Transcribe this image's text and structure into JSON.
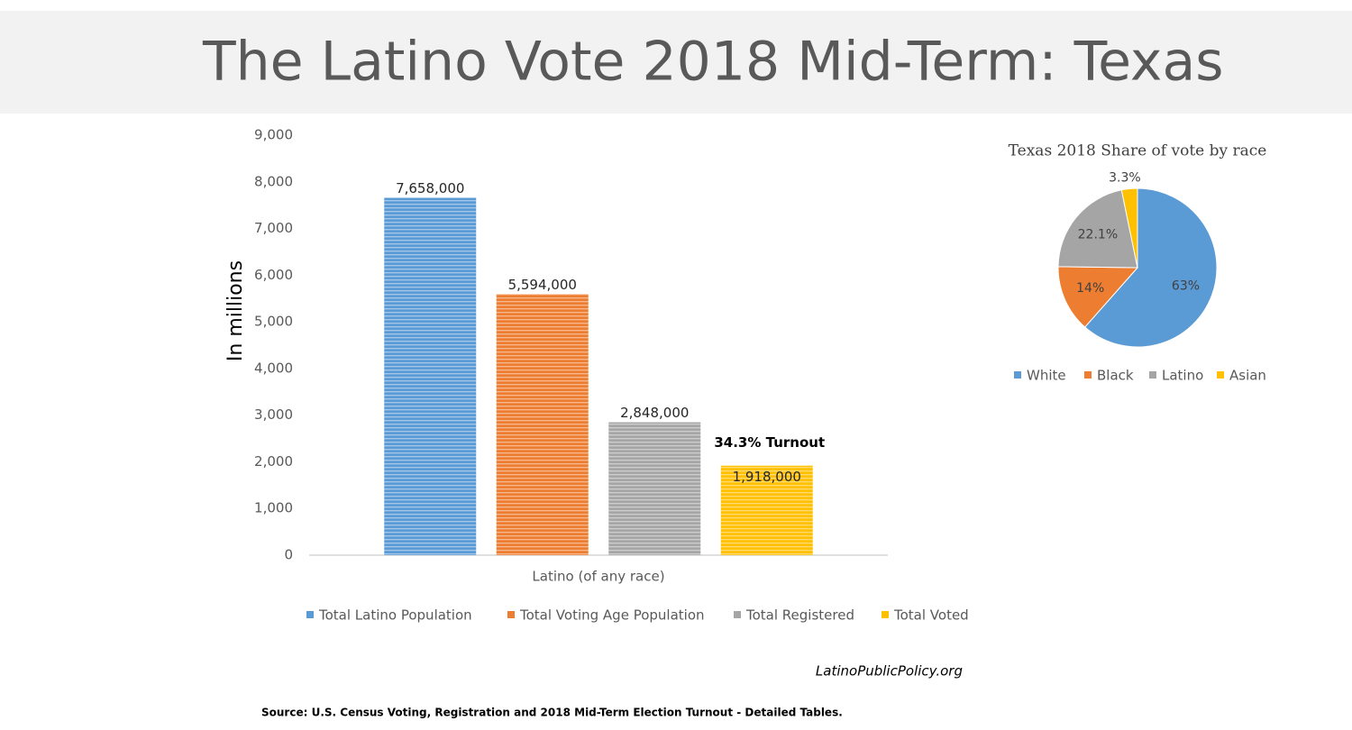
{
  "title": "The Latino Vote 2018 Mid-Term: Texas",
  "credit": "LatinoPublicPolicy.org",
  "source": "Source: U.S. Census Voting, Registration and 2018 Mid-Term Election Turnout - Detailed Tables.",
  "chart_data": [
    {
      "type": "bar",
      "ylabel": "In millions",
      "categories": [
        "Latino (of any race)"
      ],
      "series": [
        {
          "name": "Total Latino Population",
          "color": "#5b9bd5",
          "values": [
            7658
          ],
          "value_labels": [
            "7,658,000"
          ]
        },
        {
          "name": "Total Voting Age Population",
          "color": "#ed7d31",
          "values": [
            5594
          ],
          "value_labels": [
            "5,594,000"
          ]
        },
        {
          "name": "Total Registered",
          "color": "#a5a5a5",
          "values": [
            2848
          ],
          "value_labels": [
            "2,848,000"
          ]
        },
        {
          "name": "Total Voted",
          "color": "#ffc000",
          "values": [
            1918
          ],
          "value_labels": [
            "1,918,000"
          ]
        }
      ],
      "annotation": "34.3% Turnout",
      "ylim": [
        0,
        9000
      ],
      "yticks": [
        0,
        {
          "value": 1000,
          "label": "1,000"
        },
        {
          "value": 2000,
          "label": "2,000"
        },
        {
          "value": 3000,
          "label": "3,000"
        },
        {
          "value": 4000,
          "label": "4,000"
        },
        {
          "value": 5000,
          "label": "5,000"
        },
        {
          "value": 6000,
          "label": "6,000"
        },
        {
          "value": 7000,
          "label": "7,000"
        },
        {
          "value": 8000,
          "label": "8,000"
        },
        {
          "value": 9000,
          "label": "9,000"
        }
      ],
      "legend": "bottom"
    },
    {
      "type": "pie",
      "title": "Texas 2018 Share of vote by race",
      "categories": [
        "White",
        "Black",
        "Latino",
        "Asian"
      ],
      "values": [
        63,
        14,
        22.1,
        3.3
      ],
      "value_labels": [
        "63%",
        "14%",
        "22.1%",
        "3.3%"
      ],
      "colors": [
        "#5b9bd5",
        "#ed7d31",
        "#a5a5a5",
        "#ffc000"
      ],
      "legend": "bottom"
    }
  ]
}
